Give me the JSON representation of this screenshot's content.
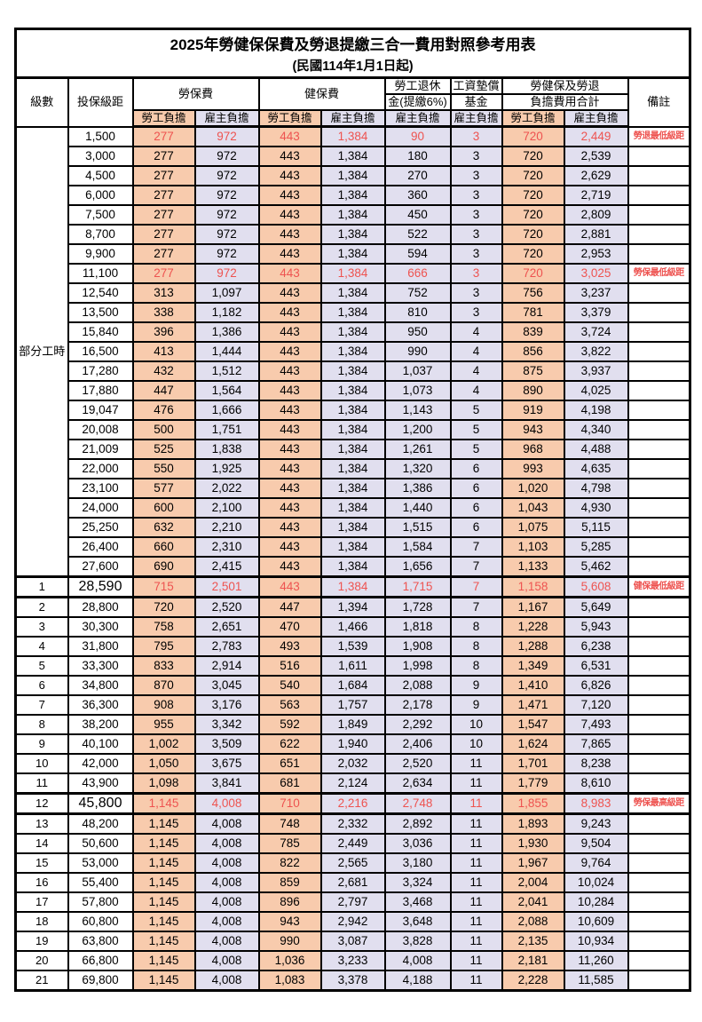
{
  "title": "2025年勞健保保費及勞退提繳三合一費用對照參考用表",
  "subtitle": "(民國114年1月1日起)",
  "columns": {
    "level": "級數",
    "bracket": "投保級距",
    "labor_insurance": "勞保費",
    "health_insurance": "健保費",
    "pension_line1": "勞工退休",
    "pension_line2": "金(提繳6%)",
    "wage_fund_line1": "工資墊償",
    "wage_fund_line2": "基金",
    "total_line1": "勞健保及勞退",
    "total_line2": "負擔費用合計",
    "remarks": "備註",
    "employee_share": "勞工負擔",
    "employer_share": "雇主負擔"
  },
  "part_time_label": "部分工時",
  "part_time_rowspan": 23,
  "colors": {
    "employee_bg": "#F8CBAD",
    "employer_bg": "#E1DFEF",
    "highlight_text": "#EE5350",
    "border": "#000000"
  },
  "rows": [
    {
      "level": "",
      "bracket": "1,500",
      "labor_emp": "277",
      "labor_er": "972",
      "health_emp": "443",
      "health_er": "1,384",
      "pension_er": "90",
      "wage_fund_er": "3",
      "total_emp": "720",
      "total_er": "2,449",
      "remark": "勞退最低級距",
      "highlight": true,
      "thick": false,
      "big": false
    },
    {
      "level": "",
      "bracket": "3,000",
      "labor_emp": "277",
      "labor_er": "972",
      "health_emp": "443",
      "health_er": "1,384",
      "pension_er": "180",
      "wage_fund_er": "3",
      "total_emp": "720",
      "total_er": "2,539",
      "remark": "",
      "highlight": false,
      "thick": false,
      "big": false
    },
    {
      "level": "",
      "bracket": "4,500",
      "labor_emp": "277",
      "labor_er": "972",
      "health_emp": "443",
      "health_er": "1,384",
      "pension_er": "270",
      "wage_fund_er": "3",
      "total_emp": "720",
      "total_er": "2,629",
      "remark": "",
      "highlight": false,
      "thick": false,
      "big": false
    },
    {
      "level": "",
      "bracket": "6,000",
      "labor_emp": "277",
      "labor_er": "972",
      "health_emp": "443",
      "health_er": "1,384",
      "pension_er": "360",
      "wage_fund_er": "3",
      "total_emp": "720",
      "total_er": "2,719",
      "remark": "",
      "highlight": false,
      "thick": false,
      "big": false
    },
    {
      "level": "",
      "bracket": "7,500",
      "labor_emp": "277",
      "labor_er": "972",
      "health_emp": "443",
      "health_er": "1,384",
      "pension_er": "450",
      "wage_fund_er": "3",
      "total_emp": "720",
      "total_er": "2,809",
      "remark": "",
      "highlight": false,
      "thick": false,
      "big": false
    },
    {
      "level": "",
      "bracket": "8,700",
      "labor_emp": "277",
      "labor_er": "972",
      "health_emp": "443",
      "health_er": "1,384",
      "pension_er": "522",
      "wage_fund_er": "3",
      "total_emp": "720",
      "total_er": "2,881",
      "remark": "",
      "highlight": false,
      "thick": false,
      "big": false
    },
    {
      "level": "",
      "bracket": "9,900",
      "labor_emp": "277",
      "labor_er": "972",
      "health_emp": "443",
      "health_er": "1,384",
      "pension_er": "594",
      "wage_fund_er": "3",
      "total_emp": "720",
      "total_er": "2,953",
      "remark": "",
      "highlight": false,
      "thick": false,
      "big": false
    },
    {
      "level": "",
      "bracket": "11,100",
      "labor_emp": "277",
      "labor_er": "972",
      "health_emp": "443",
      "health_er": "1,384",
      "pension_er": "666",
      "wage_fund_er": "3",
      "total_emp": "720",
      "total_er": "3,025",
      "remark": "勞保最低級距",
      "highlight": true,
      "thick": false,
      "big": false
    },
    {
      "level": "",
      "bracket": "12,540",
      "labor_emp": "313",
      "labor_er": "1,097",
      "health_emp": "443",
      "health_er": "1,384",
      "pension_er": "752",
      "wage_fund_er": "3",
      "total_emp": "756",
      "total_er": "3,237",
      "remark": "",
      "highlight": false,
      "thick": false,
      "big": false
    },
    {
      "level": "",
      "bracket": "13,500",
      "labor_emp": "338",
      "labor_er": "1,182",
      "health_emp": "443",
      "health_er": "1,384",
      "pension_er": "810",
      "wage_fund_er": "3",
      "total_emp": "781",
      "total_er": "3,379",
      "remark": "",
      "highlight": false,
      "thick": false,
      "big": false
    },
    {
      "level": "",
      "bracket": "15,840",
      "labor_emp": "396",
      "labor_er": "1,386",
      "health_emp": "443",
      "health_er": "1,384",
      "pension_er": "950",
      "wage_fund_er": "4",
      "total_emp": "839",
      "total_er": "3,724",
      "remark": "",
      "highlight": false,
      "thick": false,
      "big": false
    },
    {
      "level": "",
      "bracket": "16,500",
      "labor_emp": "413",
      "labor_er": "1,444",
      "health_emp": "443",
      "health_er": "1,384",
      "pension_er": "990",
      "wage_fund_er": "4",
      "total_emp": "856",
      "total_er": "3,822",
      "remark": "",
      "highlight": false,
      "thick": false,
      "big": false
    },
    {
      "level": "",
      "bracket": "17,280",
      "labor_emp": "432",
      "labor_er": "1,512",
      "health_emp": "443",
      "health_er": "1,384",
      "pension_er": "1,037",
      "wage_fund_er": "4",
      "total_emp": "875",
      "total_er": "3,937",
      "remark": "",
      "highlight": false,
      "thick": false,
      "big": false
    },
    {
      "level": "",
      "bracket": "17,880",
      "labor_emp": "447",
      "labor_er": "1,564",
      "health_emp": "443",
      "health_er": "1,384",
      "pension_er": "1,073",
      "wage_fund_er": "4",
      "total_emp": "890",
      "total_er": "4,025",
      "remark": "",
      "highlight": false,
      "thick": false,
      "big": false
    },
    {
      "level": "",
      "bracket": "19,047",
      "labor_emp": "476",
      "labor_er": "1,666",
      "health_emp": "443",
      "health_er": "1,384",
      "pension_er": "1,143",
      "wage_fund_er": "5",
      "total_emp": "919",
      "total_er": "4,198",
      "remark": "",
      "highlight": false,
      "thick": false,
      "big": false
    },
    {
      "level": "",
      "bracket": "20,008",
      "labor_emp": "500",
      "labor_er": "1,751",
      "health_emp": "443",
      "health_er": "1,384",
      "pension_er": "1,200",
      "wage_fund_er": "5",
      "total_emp": "943",
      "total_er": "4,340",
      "remark": "",
      "highlight": false,
      "thick": false,
      "big": false
    },
    {
      "level": "",
      "bracket": "21,009",
      "labor_emp": "525",
      "labor_er": "1,838",
      "health_emp": "443",
      "health_er": "1,384",
      "pension_er": "1,261",
      "wage_fund_er": "5",
      "total_emp": "968",
      "total_er": "4,488",
      "remark": "",
      "highlight": false,
      "thick": false,
      "big": false
    },
    {
      "level": "",
      "bracket": "22,000",
      "labor_emp": "550",
      "labor_er": "1,925",
      "health_emp": "443",
      "health_er": "1,384",
      "pension_er": "1,320",
      "wage_fund_er": "6",
      "total_emp": "993",
      "total_er": "4,635",
      "remark": "",
      "highlight": false,
      "thick": false,
      "big": false
    },
    {
      "level": "",
      "bracket": "23,100",
      "labor_emp": "577",
      "labor_er": "2,022",
      "health_emp": "443",
      "health_er": "1,384",
      "pension_er": "1,386",
      "wage_fund_er": "6",
      "total_emp": "1,020",
      "total_er": "4,798",
      "remark": "",
      "highlight": false,
      "thick": false,
      "big": false
    },
    {
      "level": "",
      "bracket": "24,000",
      "labor_emp": "600",
      "labor_er": "2,100",
      "health_emp": "443",
      "health_er": "1,384",
      "pension_er": "1,440",
      "wage_fund_er": "6",
      "total_emp": "1,043",
      "total_er": "4,930",
      "remark": "",
      "highlight": false,
      "thick": false,
      "big": false
    },
    {
      "level": "",
      "bracket": "25,250",
      "labor_emp": "632",
      "labor_er": "2,210",
      "health_emp": "443",
      "health_er": "1,384",
      "pension_er": "1,515",
      "wage_fund_er": "6",
      "total_emp": "1,075",
      "total_er": "5,115",
      "remark": "",
      "highlight": false,
      "thick": false,
      "big": false
    },
    {
      "level": "",
      "bracket": "26,400",
      "labor_emp": "660",
      "labor_er": "2,310",
      "health_emp": "443",
      "health_er": "1,384",
      "pension_er": "1,584",
      "wage_fund_er": "7",
      "total_emp": "1,103",
      "total_er": "5,285",
      "remark": "",
      "highlight": false,
      "thick": false,
      "big": false
    },
    {
      "level": "",
      "bracket": "27,600",
      "labor_emp": "690",
      "labor_er": "2,415",
      "health_emp": "443",
      "health_er": "1,384",
      "pension_er": "1,656",
      "wage_fund_er": "7",
      "total_emp": "1,133",
      "total_er": "5,462",
      "remark": "",
      "highlight": false,
      "thick": false,
      "big": false
    },
    {
      "level": "1",
      "bracket": "28,590",
      "labor_emp": "715",
      "labor_er": "2,501",
      "health_emp": "443",
      "health_er": "1,384",
      "pension_er": "1,715",
      "wage_fund_er": "7",
      "total_emp": "1,158",
      "total_er": "5,608",
      "remark": "健保最低級距",
      "highlight": true,
      "thick": true,
      "big": true
    },
    {
      "level": "2",
      "bracket": "28,800",
      "labor_emp": "720",
      "labor_er": "2,520",
      "health_emp": "447",
      "health_er": "1,394",
      "pension_er": "1,728",
      "wage_fund_er": "7",
      "total_emp": "1,167",
      "total_er": "5,649",
      "remark": "",
      "highlight": false,
      "thick": false,
      "big": false
    },
    {
      "level": "3",
      "bracket": "30,300",
      "labor_emp": "758",
      "labor_er": "2,651",
      "health_emp": "470",
      "health_er": "1,466",
      "pension_er": "1,818",
      "wage_fund_er": "8",
      "total_emp": "1,228",
      "total_er": "5,943",
      "remark": "",
      "highlight": false,
      "thick": false,
      "big": false
    },
    {
      "level": "4",
      "bracket": "31,800",
      "labor_emp": "795",
      "labor_er": "2,783",
      "health_emp": "493",
      "health_er": "1,539",
      "pension_er": "1,908",
      "wage_fund_er": "8",
      "total_emp": "1,288",
      "total_er": "6,238",
      "remark": "",
      "highlight": false,
      "thick": false,
      "big": false
    },
    {
      "level": "5",
      "bracket": "33,300",
      "labor_emp": "833",
      "labor_er": "2,914",
      "health_emp": "516",
      "health_er": "1,611",
      "pension_er": "1,998",
      "wage_fund_er": "8",
      "total_emp": "1,349",
      "total_er": "6,531",
      "remark": "",
      "highlight": false,
      "thick": false,
      "big": false
    },
    {
      "level": "6",
      "bracket": "34,800",
      "labor_emp": "870",
      "labor_er": "3,045",
      "health_emp": "540",
      "health_er": "1,684",
      "pension_er": "2,088",
      "wage_fund_er": "9",
      "total_emp": "1,410",
      "total_er": "6,826",
      "remark": "",
      "highlight": false,
      "thick": false,
      "big": false
    },
    {
      "level": "7",
      "bracket": "36,300",
      "labor_emp": "908",
      "labor_er": "3,176",
      "health_emp": "563",
      "health_er": "1,757",
      "pension_er": "2,178",
      "wage_fund_er": "9",
      "total_emp": "1,471",
      "total_er": "7,120",
      "remark": "",
      "highlight": false,
      "thick": false,
      "big": false
    },
    {
      "level": "8",
      "bracket": "38,200",
      "labor_emp": "955",
      "labor_er": "3,342",
      "health_emp": "592",
      "health_er": "1,849",
      "pension_er": "2,292",
      "wage_fund_er": "10",
      "total_emp": "1,547",
      "total_er": "7,493",
      "remark": "",
      "highlight": false,
      "thick": false,
      "big": false
    },
    {
      "level": "9",
      "bracket": "40,100",
      "labor_emp": "1,002",
      "labor_er": "3,509",
      "health_emp": "622",
      "health_er": "1,940",
      "pension_er": "2,406",
      "wage_fund_er": "10",
      "total_emp": "1,624",
      "total_er": "7,865",
      "remark": "",
      "highlight": false,
      "thick": false,
      "big": false
    },
    {
      "level": "10",
      "bracket": "42,000",
      "labor_emp": "1,050",
      "labor_er": "3,675",
      "health_emp": "651",
      "health_er": "2,032",
      "pension_er": "2,520",
      "wage_fund_er": "11",
      "total_emp": "1,701",
      "total_er": "8,238",
      "remark": "",
      "highlight": false,
      "thick": false,
      "big": false
    },
    {
      "level": "11",
      "bracket": "43,900",
      "labor_emp": "1,098",
      "labor_er": "3,841",
      "health_emp": "681",
      "health_er": "2,124",
      "pension_er": "2,634",
      "wage_fund_er": "11",
      "total_emp": "1,779",
      "total_er": "8,610",
      "remark": "",
      "highlight": false,
      "thick": false,
      "big": false
    },
    {
      "level": "12",
      "bracket": "45,800",
      "labor_emp": "1,145",
      "labor_er": "4,008",
      "health_emp": "710",
      "health_er": "2,216",
      "pension_er": "2,748",
      "wage_fund_er": "11",
      "total_emp": "1,855",
      "total_er": "8,983",
      "remark": "勞保最高級距",
      "highlight": true,
      "thick": true,
      "big": true
    },
    {
      "level": "13",
      "bracket": "48,200",
      "labor_emp": "1,145",
      "labor_er": "4,008",
      "health_emp": "748",
      "health_er": "2,332",
      "pension_er": "2,892",
      "wage_fund_er": "11",
      "total_emp": "1,893",
      "total_er": "9,243",
      "remark": "",
      "highlight": false,
      "thick": false,
      "big": false
    },
    {
      "level": "14",
      "bracket": "50,600",
      "labor_emp": "1,145",
      "labor_er": "4,008",
      "health_emp": "785",
      "health_er": "2,449",
      "pension_er": "3,036",
      "wage_fund_er": "11",
      "total_emp": "1,930",
      "total_er": "9,504",
      "remark": "",
      "highlight": false,
      "thick": false,
      "big": false
    },
    {
      "level": "15",
      "bracket": "53,000",
      "labor_emp": "1,145",
      "labor_er": "4,008",
      "health_emp": "822",
      "health_er": "2,565",
      "pension_er": "3,180",
      "wage_fund_er": "11",
      "total_emp": "1,967",
      "total_er": "9,764",
      "remark": "",
      "highlight": false,
      "thick": false,
      "big": false
    },
    {
      "level": "16",
      "bracket": "55,400",
      "labor_emp": "1,145",
      "labor_er": "4,008",
      "health_emp": "859",
      "health_er": "2,681",
      "pension_er": "3,324",
      "wage_fund_er": "11",
      "total_emp": "2,004",
      "total_er": "10,024",
      "remark": "",
      "highlight": false,
      "thick": false,
      "big": false
    },
    {
      "level": "17",
      "bracket": "57,800",
      "labor_emp": "1,145",
      "labor_er": "4,008",
      "health_emp": "896",
      "health_er": "2,797",
      "pension_er": "3,468",
      "wage_fund_er": "11",
      "total_emp": "2,041",
      "total_er": "10,284",
      "remark": "",
      "highlight": false,
      "thick": false,
      "big": false
    },
    {
      "level": "18",
      "bracket": "60,800",
      "labor_emp": "1,145",
      "labor_er": "4,008",
      "health_emp": "943",
      "health_er": "2,942",
      "pension_er": "3,648",
      "wage_fund_er": "11",
      "total_emp": "2,088",
      "total_er": "10,609",
      "remark": "",
      "highlight": false,
      "thick": false,
      "big": false
    },
    {
      "level": "19",
      "bracket": "63,800",
      "labor_emp": "1,145",
      "labor_er": "4,008",
      "health_emp": "990",
      "health_er": "3,087",
      "pension_er": "3,828",
      "wage_fund_er": "11",
      "total_emp": "2,135",
      "total_er": "10,934",
      "remark": "",
      "highlight": false,
      "thick": false,
      "big": false
    },
    {
      "level": "20",
      "bracket": "66,800",
      "labor_emp": "1,145",
      "labor_er": "4,008",
      "health_emp": "1,036",
      "health_er": "3,233",
      "pension_er": "4,008",
      "wage_fund_er": "11",
      "total_emp": "2,181",
      "total_er": "11,260",
      "remark": "",
      "highlight": false,
      "thick": false,
      "big": false
    },
    {
      "level": "21",
      "bracket": "69,800",
      "labor_emp": "1,145",
      "labor_er": "4,008",
      "health_emp": "1,083",
      "health_er": "3,378",
      "pension_er": "4,188",
      "wage_fund_er": "11",
      "total_emp": "2,228",
      "total_er": "11,585",
      "remark": "",
      "highlight": false,
      "thick": false,
      "big": false
    }
  ]
}
